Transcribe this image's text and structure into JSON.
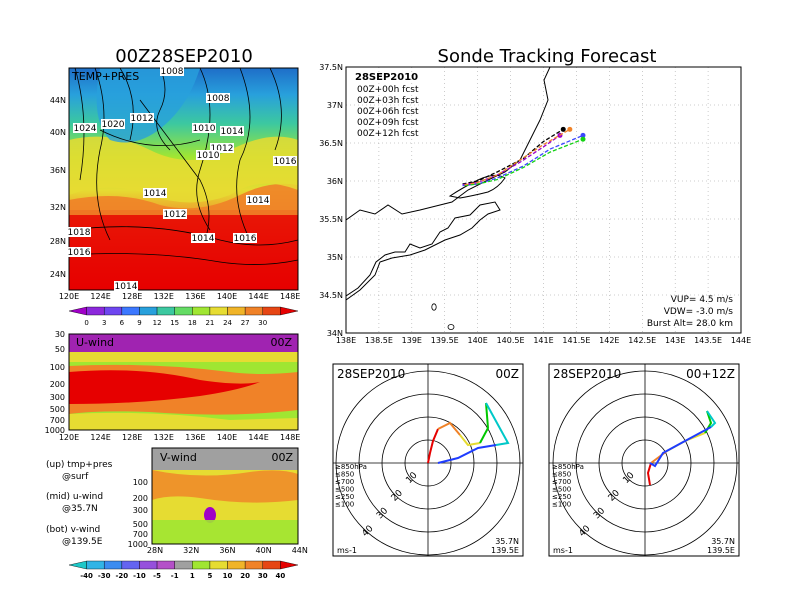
{
  "left_title": "00Z28SEP2010",
  "right_title": "Sonde Tracking Forecast",
  "colors": {
    "fcst_00h": "#000000",
    "fcst_03h": "#a000c8",
    "fcst_06h": "#3c46ff",
    "fcst_09h": "#14d214",
    "fcst_12h": "#f08228",
    "hodo_low": "#e60000",
    "hodo_850": "#f08228",
    "hodo_700": "#e6dc32",
    "hodo_500": "#00c800",
    "hodo_250": "#00c8c8",
    "hodo_100": "#1e3cff"
  },
  "temp_panel": {
    "label": "TEMP+PRES",
    "isobars": [
      "1008",
      "1008",
      "1020",
      "1024",
      "1012",
      "1010",
      "1014",
      "1012",
      "1010",
      "1016",
      "1014",
      "1014",
      "1012",
      "1014",
      "1016",
      "1018",
      "1016",
      "1014"
    ],
    "lat_ticks": [
      "44N",
      "40N",
      "36N",
      "32N",
      "28N",
      "24N"
    ],
    "lon_ticks": [
      "120E",
      "124E",
      "128E",
      "132E",
      "136E",
      "140E",
      "144E",
      "148E"
    ],
    "colorbar_ticks": [
      "0",
      "3",
      "6",
      "9",
      "12",
      "15",
      "18",
      "21",
      "24",
      "27",
      "30"
    ]
  },
  "u_panel": {
    "label": "U-wind",
    "time": "00Z",
    "p_ticks": [
      "30",
      "50",
      "100",
      "200",
      "300",
      "500",
      "700",
      "1000"
    ],
    "lon_ticks": [
      "120E",
      "124E",
      "128E",
      "132E",
      "136E",
      "140E",
      "144E",
      "148E"
    ]
  },
  "v_panel": {
    "label": "V-wind",
    "time": "00Z",
    "p_ticks": [
      "100",
      "200",
      "300",
      "500",
      "700",
      "1000"
    ],
    "lat_ticks": [
      "28N",
      "32N",
      "36N",
      "40N",
      "44N"
    ],
    "colorbar_ticks": [
      "-40",
      "-30",
      "-20",
      "-10",
      "-5",
      "-1",
      "1",
      "5",
      "10",
      "20",
      "30",
      "40"
    ]
  },
  "legend_notes": [
    {
      "line1": "(up) tmp+pres",
      "line2": "@surf"
    },
    {
      "line1": "(mid) u-wind",
      "line2": "@35.7N"
    },
    {
      "line1": "(bot) v-wind",
      "line2": "@139.5E"
    }
  ],
  "map_panel": {
    "date": "28SEP2010",
    "forecasts": [
      "00Z+00h fcst",
      "00Z+03h fcst",
      "00Z+06h fcst",
      "00Z+09h fcst",
      "00Z+12h fcst"
    ],
    "lat_ticks": [
      "37.5N",
      "37N",
      "36.5N",
      "36N",
      "35.5N",
      "35N",
      "34.5N",
      "34N"
    ],
    "lon_ticks": [
      "138E",
      "138.5E",
      "139E",
      "139.5E",
      "140E",
      "140.5E",
      "141E",
      "141.5E",
      "142E",
      "142.5E",
      "143E",
      "143.5E",
      "144E"
    ],
    "vup": "VUP= 4.5 m/s",
    "vdw": "VDW= -3.0 m/s",
    "burst": "Burst Alt= 28.0 km"
  },
  "hodo_left": {
    "date": "28SEP2010",
    "time": "00Z",
    "ring_labels": [
      "10",
      "20",
      "30",
      "40"
    ],
    "levels": [
      "≥850hPa",
      "≤850",
      "≤700",
      "≤500",
      "≤250",
      "≤100"
    ],
    "units": "ms-1",
    "lat": "35.7N",
    "lon": "139.5E"
  },
  "hodo_right": {
    "date": "28SEP2010",
    "time": "00+12Z",
    "ring_labels": [
      "10",
      "20",
      "30",
      "40"
    ],
    "levels": [
      "≥850hPa",
      "≤850",
      "≤700",
      "≤500",
      "≤250",
      "≤100"
    ],
    "units": "ms-1",
    "lat": "35.7N",
    "lon": "139.5E"
  },
  "chart_data": [
    {
      "type": "heatmap",
      "title": "00Z28SEP2010",
      "variable": "TEMP+PRES",
      "x_ticks": [
        "120E",
        "124E",
        "128E",
        "132E",
        "136E",
        "140E",
        "144E",
        "148E"
      ],
      "y_ticks": [
        "24N",
        "28N",
        "32N",
        "36N",
        "40N",
        "44N"
      ],
      "colorbar": [
        0,
        3,
        6,
        9,
        12,
        15,
        18,
        21,
        24,
        27,
        30
      ],
      "isobar_labels": [
        1008,
        1008,
        1020,
        1024,
        1012,
        1010,
        1014,
        1012,
        1010,
        1016,
        1014,
        1014,
        1012,
        1014,
        1016,
        1018,
        1016,
        1014
      ]
    },
    {
      "type": "heatmap",
      "title": "U-wind 00Z",
      "x_ticks": [
        "120E",
        "124E",
        "128E",
        "132E",
        "136E",
        "140E",
        "144E",
        "148E"
      ],
      "y_ticks": [
        "30",
        "50",
        "100",
        "200",
        "300",
        "500",
        "700",
        "1000"
      ],
      "grid": false
    },
    {
      "type": "heatmap",
      "title": "V-wind 00Z",
      "x_ticks": [
        "28N",
        "32N",
        "36N",
        "40N",
        "44N"
      ],
      "y_ticks": [
        "100",
        "200",
        "300",
        "500",
        "700",
        "1000"
      ],
      "colorbar": [
        -40,
        -30,
        -20,
        -10,
        -5,
        -1,
        1,
        5,
        10,
        20,
        30,
        40
      ]
    },
    {
      "type": "line",
      "title": "Sonde Tracking Forecast",
      "xlim": [
        138,
        144
      ],
      "ylim": [
        34,
        37.5
      ],
      "grid": true,
      "series": [
        {
          "name": "00Z+00h fcst",
          "x": [
            139.77,
            140.0,
            140.3,
            140.7,
            141.0,
            141.3
          ],
          "y": [
            35.96,
            36.0,
            36.12,
            36.3,
            36.52,
            36.68
          ]
        },
        {
          "name": "00Z+03h fcst",
          "x": [
            139.77,
            140.0,
            140.3,
            140.65,
            141.0,
            141.25
          ],
          "y": [
            35.95,
            35.98,
            36.08,
            36.25,
            36.45,
            36.6
          ]
        },
        {
          "name": "00Z+06h fcst",
          "x": [
            139.77,
            140.0,
            140.3,
            140.7,
            141.1,
            141.6
          ],
          "y": [
            35.94,
            35.96,
            36.04,
            36.2,
            36.42,
            36.6
          ]
        },
        {
          "name": "00Z+09h fcst",
          "x": [
            139.8,
            140.0,
            140.3,
            140.7,
            141.1,
            141.6
          ],
          "y": [
            35.94,
            35.96,
            36.02,
            36.18,
            36.38,
            36.55
          ]
        },
        {
          "name": "00Z+12h fcst",
          "x": [
            139.8,
            140.0,
            140.3,
            140.65,
            141.0,
            141.4
          ],
          "y": [
            35.95,
            35.98,
            36.08,
            36.28,
            36.48,
            36.68
          ]
        }
      ]
    }
  ]
}
